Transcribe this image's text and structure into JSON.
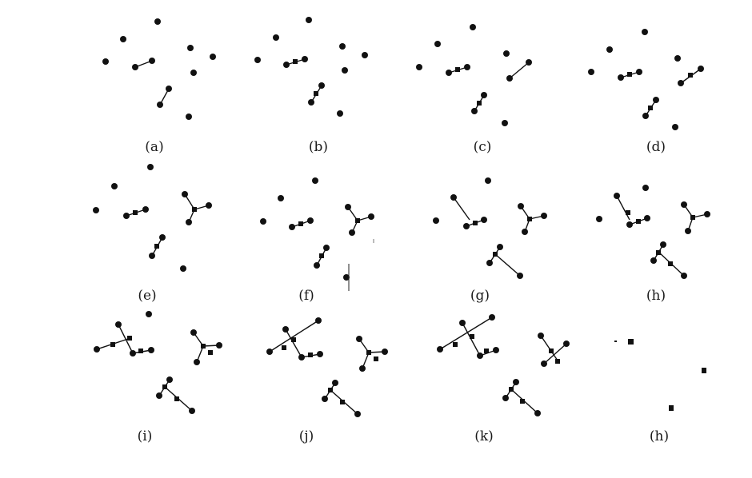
{
  "figure": {
    "panels": [
      {
        "id": "a",
        "caption": "(a)"
      },
      {
        "id": "b",
        "caption": "(b)"
      },
      {
        "id": "c",
        "caption": "(c)"
      },
      {
        "id": "d",
        "caption": "(d)"
      },
      {
        "id": "e",
        "caption": "(e)"
      },
      {
        "id": "f",
        "caption": "(f)"
      },
      {
        "id": "g",
        "caption": "(g)"
      },
      {
        "id": "h",
        "caption": "(h)"
      },
      {
        "id": "i",
        "caption": "(i)"
      },
      {
        "id": "j",
        "caption": "(j)"
      },
      {
        "id": "k",
        "caption": "(k)"
      },
      {
        "id": "h2",
        "caption": "(h)"
      }
    ],
    "colors": {
      "ink": "#111111",
      "background": "#ffffff"
    }
  }
}
